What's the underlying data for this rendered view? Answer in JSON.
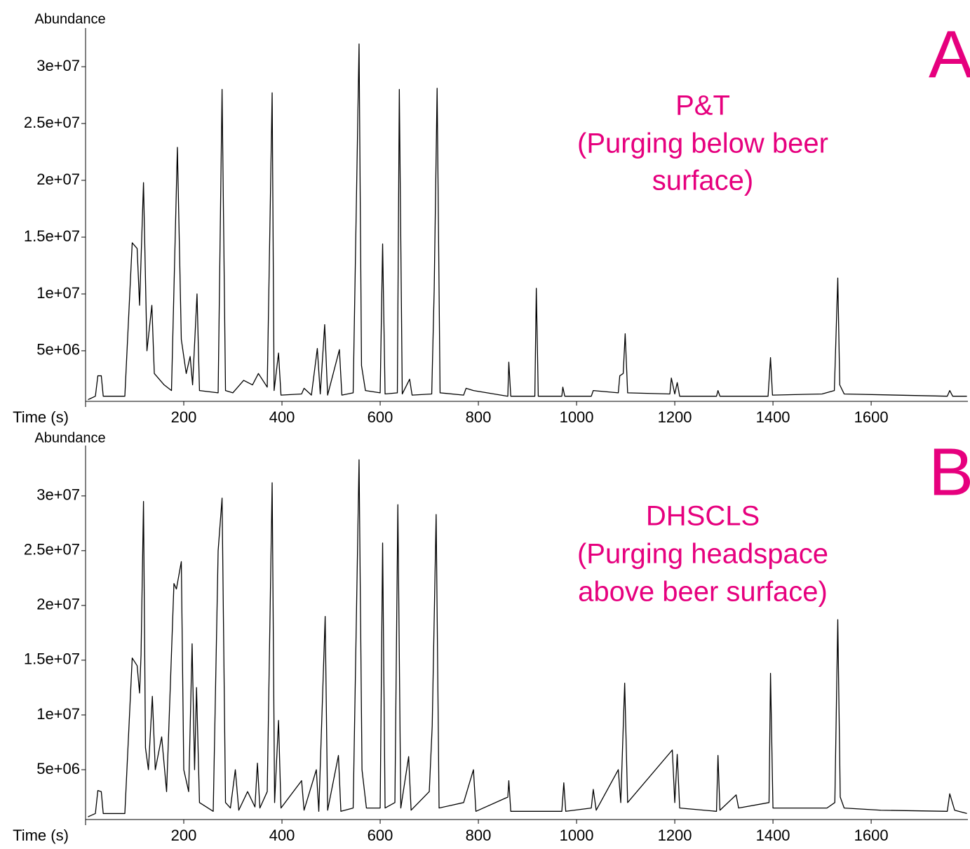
{
  "chart_data": [
    {
      "type": "line",
      "panel_label": "A",
      "annotation": [
        "P&T",
        "(Purging below beer",
        "surface)"
      ],
      "annotation_color": "#e6007e",
      "x_label": "Time (s)",
      "y_label": "Abundance",
      "color": "#000000",
      "xlim": [
        0,
        1797
      ],
      "ylim": [
        550000,
        33400000
      ],
      "xticks": [
        200,
        400,
        600,
        800,
        1000,
        1200,
        1400,
        1600
      ],
      "yticks": [
        {
          "value": 5000000,
          "label": "5e+06"
        },
        {
          "value": 10000000,
          "label": "1e+07"
        },
        {
          "value": 15000000,
          "label": "1.5e+07"
        },
        {
          "value": 20000000,
          "label": "2e+07"
        },
        {
          "value": 25000000,
          "label": "2.5e+07"
        },
        {
          "value": 30000000,
          "label": "3e+07"
        }
      ],
      "x": [
        5,
        20,
        25,
        32,
        36,
        80,
        95,
        105,
        110,
        118,
        125,
        135,
        140,
        160,
        175,
        187,
        195,
        205,
        213,
        218,
        227,
        232,
        270,
        278,
        285,
        300,
        322,
        340,
        352,
        370,
        380,
        384,
        393,
        398,
        440,
        445,
        460,
        472,
        478,
        487,
        493,
        517,
        522,
        545,
        557,
        562,
        570,
        600,
        605,
        610,
        635,
        639,
        645,
        660,
        665,
        705,
        710,
        716,
        722,
        770,
        775,
        790,
        860,
        862,
        866,
        915,
        918,
        922,
        970,
        972,
        976,
        1030,
        1034,
        1085,
        1088,
        1095,
        1099,
        1104,
        1190,
        1193,
        1200,
        1205,
        1210,
        1285,
        1288,
        1292,
        1390,
        1395,
        1399,
        1500,
        1525,
        1532,
        1536,
        1545,
        1755,
        1760,
        1766,
        1795
      ],
      "values": [
        700000,
        1000000,
        2800000,
        2800000,
        1000000,
        1000000,
        14500000,
        14000000,
        9000000,
        19800000,
        5000000,
        9000000,
        3000000,
        2000000,
        1500000,
        22900000,
        6000000,
        3000000,
        4500000,
        2000000,
        10000000,
        1500000,
        1300000,
        28000000,
        1500000,
        1300000,
        2400000,
        2000000,
        3000000,
        1800000,
        27700000,
        1500000,
        4800000,
        1100000,
        1200000,
        1700000,
        1100000,
        5200000,
        1200000,
        7300000,
        1100000,
        5100000,
        1100000,
        1300000,
        32000000,
        3700000,
        1500000,
        1300000,
        14400000,
        1200000,
        1300000,
        28000000,
        1200000,
        2500000,
        1100000,
        1200000,
        10300000,
        28100000,
        1300000,
        1100000,
        1700000,
        1500000,
        1000000,
        4000000,
        1000000,
        1000000,
        10500000,
        1000000,
        1000000,
        1800000,
        1000000,
        1000000,
        1500000,
        1300000,
        2800000,
        3000000,
        6500000,
        1300000,
        1200000,
        2600000,
        1200000,
        2200000,
        1000000,
        1000000,
        1500000,
        1000000,
        1000000,
        4400000,
        1100000,
        1200000,
        1500000,
        11400000,
        2000000,
        1200000,
        1000000,
        1500000,
        1000000,
        1000000
      ]
    },
    {
      "type": "line",
      "panel_label": "B",
      "annotation": [
        "DHSCLS",
        "(Purging headspace",
        "above beer surface)"
      ],
      "annotation_color": "#e6007e",
      "x_label": "Time (s)",
      "y_label": "Abundance",
      "color": "#000000",
      "xlim": [
        0,
        1797
      ],
      "ylim": [
        450000,
        34600000
      ],
      "xticks": [
        200,
        400,
        600,
        800,
        1000,
        1200,
        1400,
        1600
      ],
      "yticks": [
        {
          "value": 5000000,
          "label": "5e+06"
        },
        {
          "value": 10000000,
          "label": "1e+07"
        },
        {
          "value": 15000000,
          "label": "1.5e+07"
        },
        {
          "value": 20000000,
          "label": "2e+07"
        },
        {
          "value": 25000000,
          "label": "2.5e+07"
        },
        {
          "value": 30000000,
          "label": "3e+07"
        }
      ],
      "x": [
        5,
        20,
        25,
        32,
        36,
        80,
        95,
        105,
        110,
        113,
        118,
        122,
        128,
        136,
        142,
        155,
        165,
        180,
        185,
        195,
        200,
        210,
        217,
        222,
        226,
        232,
        260,
        270,
        278,
        285,
        295,
        305,
        312,
        330,
        345,
        350,
        355,
        370,
        380,
        385,
        393,
        398,
        440,
        445,
        470,
        475,
        488,
        493,
        515,
        520,
        545,
        557,
        563,
        572,
        600,
        605,
        610,
        630,
        636,
        642,
        658,
        663,
        700,
        706,
        714,
        720,
        770,
        790,
        795,
        860,
        862,
        866,
        970,
        974,
        978,
        1030,
        1034,
        1040,
        1085,
        1090,
        1098,
        1104,
        1195,
        1200,
        1205,
        1210,
        1285,
        1288,
        1292,
        1325,
        1330,
        1392,
        1395,
        1400,
        1510,
        1526,
        1532,
        1537,
        1545,
        1620,
        1755,
        1760,
        1770,
        1795
      ],
      "values": [
        700000,
        1000000,
        3100000,
        3000000,
        1000000,
        1000000,
        15200000,
        14500000,
        12000000,
        15500000,
        29500000,
        7000000,
        5000000,
        11700000,
        5000000,
        8000000,
        3000000,
        22000000,
        21500000,
        24000000,
        5000000,
        3000000,
        16500000,
        5000000,
        12500000,
        2000000,
        1200000,
        25000000,
        29800000,
        2000000,
        1500000,
        5000000,
        1300000,
        3000000,
        1600000,
        5600000,
        1500000,
        3000000,
        31200000,
        2000000,
        9500000,
        1500000,
        4000000,
        1300000,
        5000000,
        1200000,
        19000000,
        1300000,
        6300000,
        1200000,
        1500000,
        33300000,
        5000000,
        1500000,
        1500000,
        25700000,
        1500000,
        2000000,
        29200000,
        1500000,
        6200000,
        1300000,
        3000000,
        9000000,
        28300000,
        1500000,
        2000000,
        5000000,
        1200000,
        2500000,
        4000000,
        1200000,
        1200000,
        3800000,
        1200000,
        1500000,
        3200000,
        1300000,
        5000000,
        2000000,
        12900000,
        2000000,
        6800000,
        2000000,
        6400000,
        1500000,
        1200000,
        6300000,
        1300000,
        2700000,
        1500000,
        2000000,
        13800000,
        1500000,
        1500000,
        2000000,
        18700000,
        2500000,
        1500000,
        1300000,
        1200000,
        2800000,
        1300000,
        1000000
      ]
    }
  ]
}
